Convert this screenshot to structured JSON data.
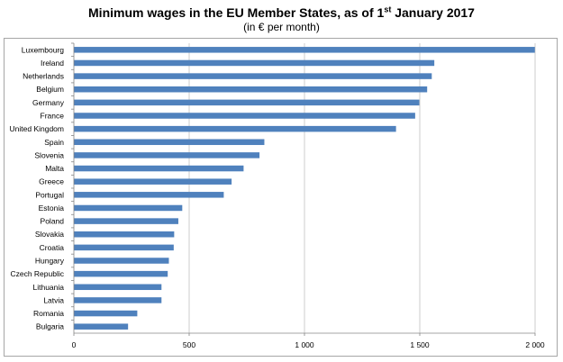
{
  "title_text": "Minimum wages in the EU Member States, as of 1",
  "title_sup": "st",
  "title_tail": " January 2017",
  "subtitle": "(in € per month)",
  "chart_data": {
    "type": "bar",
    "orientation": "horizontal",
    "categories": [
      "Luxembourg",
      "Ireland",
      "Netherlands",
      "Belgium",
      "Germany",
      "France",
      "United Kingdom",
      "Spain",
      "Slovenia",
      "Malta",
      "Greece",
      "Portugal",
      "Estonia",
      "Poland",
      "Slovakia",
      "Croatia",
      "Hungary",
      "Czech Republic",
      "Lithuania",
      "Latvia",
      "Romania",
      "Bulgaria"
    ],
    "values": [
      1999,
      1563,
      1552,
      1532,
      1498,
      1480,
      1397,
      826,
      805,
      736,
      684,
      650,
      470,
      453,
      435,
      433,
      412,
      407,
      380,
      380,
      275,
      235
    ],
    "xlim": [
      0,
      2000
    ],
    "xticks": [
      0,
      500,
      1000,
      1500,
      2000
    ],
    "xtick_labels": [
      "0",
      "500",
      "1 000",
      "1 500",
      "2 000"
    ],
    "grid": "vertical",
    "bar_color": "#4f81bd"
  }
}
